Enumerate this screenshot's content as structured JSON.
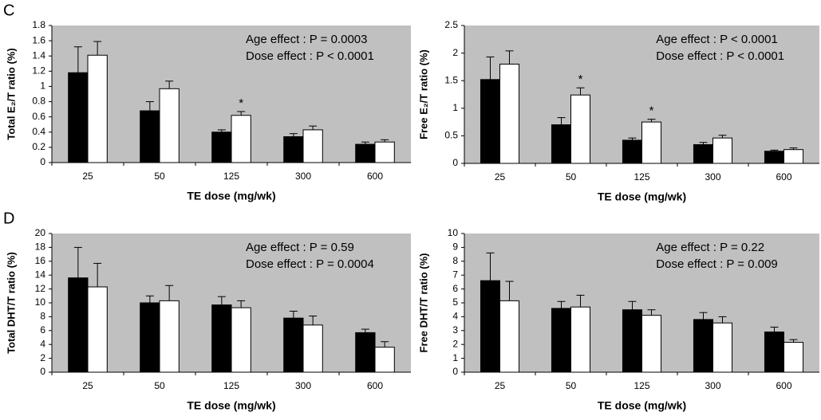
{
  "chart_data": [
    {
      "type": "bar",
      "panel": "C",
      "ylabel": "Total E₂/T ratio (%)",
      "xlabel": "TE dose (mg/wk)",
      "annotations": [
        "Age effect : P = 0.0003",
        "Dose effect : P < 0.0001"
      ],
      "categories": [
        "25",
        "50",
        "125",
        "300",
        "600"
      ],
      "ylim": [
        0,
        1.8
      ],
      "yticks": [
        0,
        0.2,
        0.4,
        0.6,
        0.8,
        1,
        1.2,
        1.4,
        1.6,
        1.8
      ],
      "series": [
        {
          "color": "#000000",
          "values": [
            1.18,
            0.68,
            0.4,
            0.34,
            0.24
          ],
          "errors": [
            0.34,
            0.12,
            0.03,
            0.04,
            0.03
          ],
          "markers": [
            null,
            null,
            null,
            null,
            null
          ]
        },
        {
          "color": "#ffffff",
          "values": [
            1.41,
            0.97,
            0.62,
            0.43,
            0.27
          ],
          "errors": [
            0.18,
            0.1,
            0.05,
            0.05,
            0.03
          ],
          "markers": [
            null,
            null,
            "*",
            null,
            null
          ]
        }
      ]
    },
    {
      "type": "bar",
      "ylabel": "Free E₂/T ratio (%)",
      "xlabel": "TE dose (mg/wk)",
      "annotations": [
        "Age effect : P < 0.0001",
        "Dose effect : P < 0.0001"
      ],
      "categories": [
        "25",
        "50",
        "125",
        "300",
        "600"
      ],
      "ylim": [
        0,
        2.5
      ],
      "yticks": [
        0,
        0.5,
        1,
        1.5,
        2,
        2.5
      ],
      "series": [
        {
          "color": "#000000",
          "values": [
            1.52,
            0.7,
            0.42,
            0.34,
            0.22
          ],
          "errors": [
            0.41,
            0.13,
            0.04,
            0.04,
            0.02
          ],
          "markers": [
            null,
            null,
            null,
            null,
            null
          ]
        },
        {
          "color": "#ffffff",
          "values": [
            1.8,
            1.24,
            0.75,
            0.46,
            0.25
          ],
          "errors": [
            0.24,
            0.13,
            0.05,
            0.05,
            0.03
          ],
          "markers": [
            null,
            "*",
            "*",
            null,
            null
          ]
        }
      ]
    },
    {
      "type": "bar",
      "panel": "D",
      "ylabel": "Total DHT/T ratio (%)",
      "xlabel": "TE dose (mg/wk)",
      "annotations": [
        "Age effect : P = 0.59",
        "Dose effect : P = 0.0004"
      ],
      "categories": [
        "25",
        "50",
        "125",
        "300",
        "600"
      ],
      "ylim": [
        0,
        20
      ],
      "yticks": [
        0,
        2,
        4,
        6,
        8,
        10,
        12,
        14,
        16,
        18,
        20
      ],
      "series": [
        {
          "color": "#000000",
          "values": [
            13.6,
            10.0,
            9.7,
            7.8,
            5.7
          ],
          "errors": [
            4.4,
            1.0,
            1.2,
            1.0,
            0.5
          ],
          "markers": [
            null,
            null,
            null,
            null,
            null
          ]
        },
        {
          "color": "#ffffff",
          "values": [
            12.3,
            10.3,
            9.3,
            6.8,
            3.6
          ],
          "errors": [
            3.4,
            2.2,
            1.0,
            1.3,
            0.8
          ],
          "markers": [
            null,
            null,
            null,
            null,
            null
          ]
        }
      ]
    },
    {
      "type": "bar",
      "ylabel": "Free DHT/T ratio (%)",
      "xlabel": "TE dose (mg/wk)",
      "annotations": [
        "Age effect : P = 0.22",
        "Dose effect : P = 0.009"
      ],
      "categories": [
        "25",
        "50",
        "125",
        "300",
        "600"
      ],
      "ylim": [
        0,
        10
      ],
      "yticks": [
        0,
        1,
        2,
        3,
        4,
        5,
        6,
        7,
        8,
        9,
        10
      ],
      "series": [
        {
          "color": "#000000",
          "values": [
            6.6,
            4.6,
            4.5,
            3.8,
            2.9
          ],
          "errors": [
            2.0,
            0.5,
            0.6,
            0.5,
            0.35
          ],
          "markers": [
            null,
            null,
            null,
            null,
            null
          ]
        },
        {
          "color": "#ffffff",
          "values": [
            5.15,
            4.7,
            4.1,
            3.55,
            2.15
          ],
          "errors": [
            1.4,
            0.85,
            0.4,
            0.45,
            0.2
          ],
          "markers": [
            null,
            null,
            null,
            null,
            null
          ]
        }
      ]
    }
  ]
}
